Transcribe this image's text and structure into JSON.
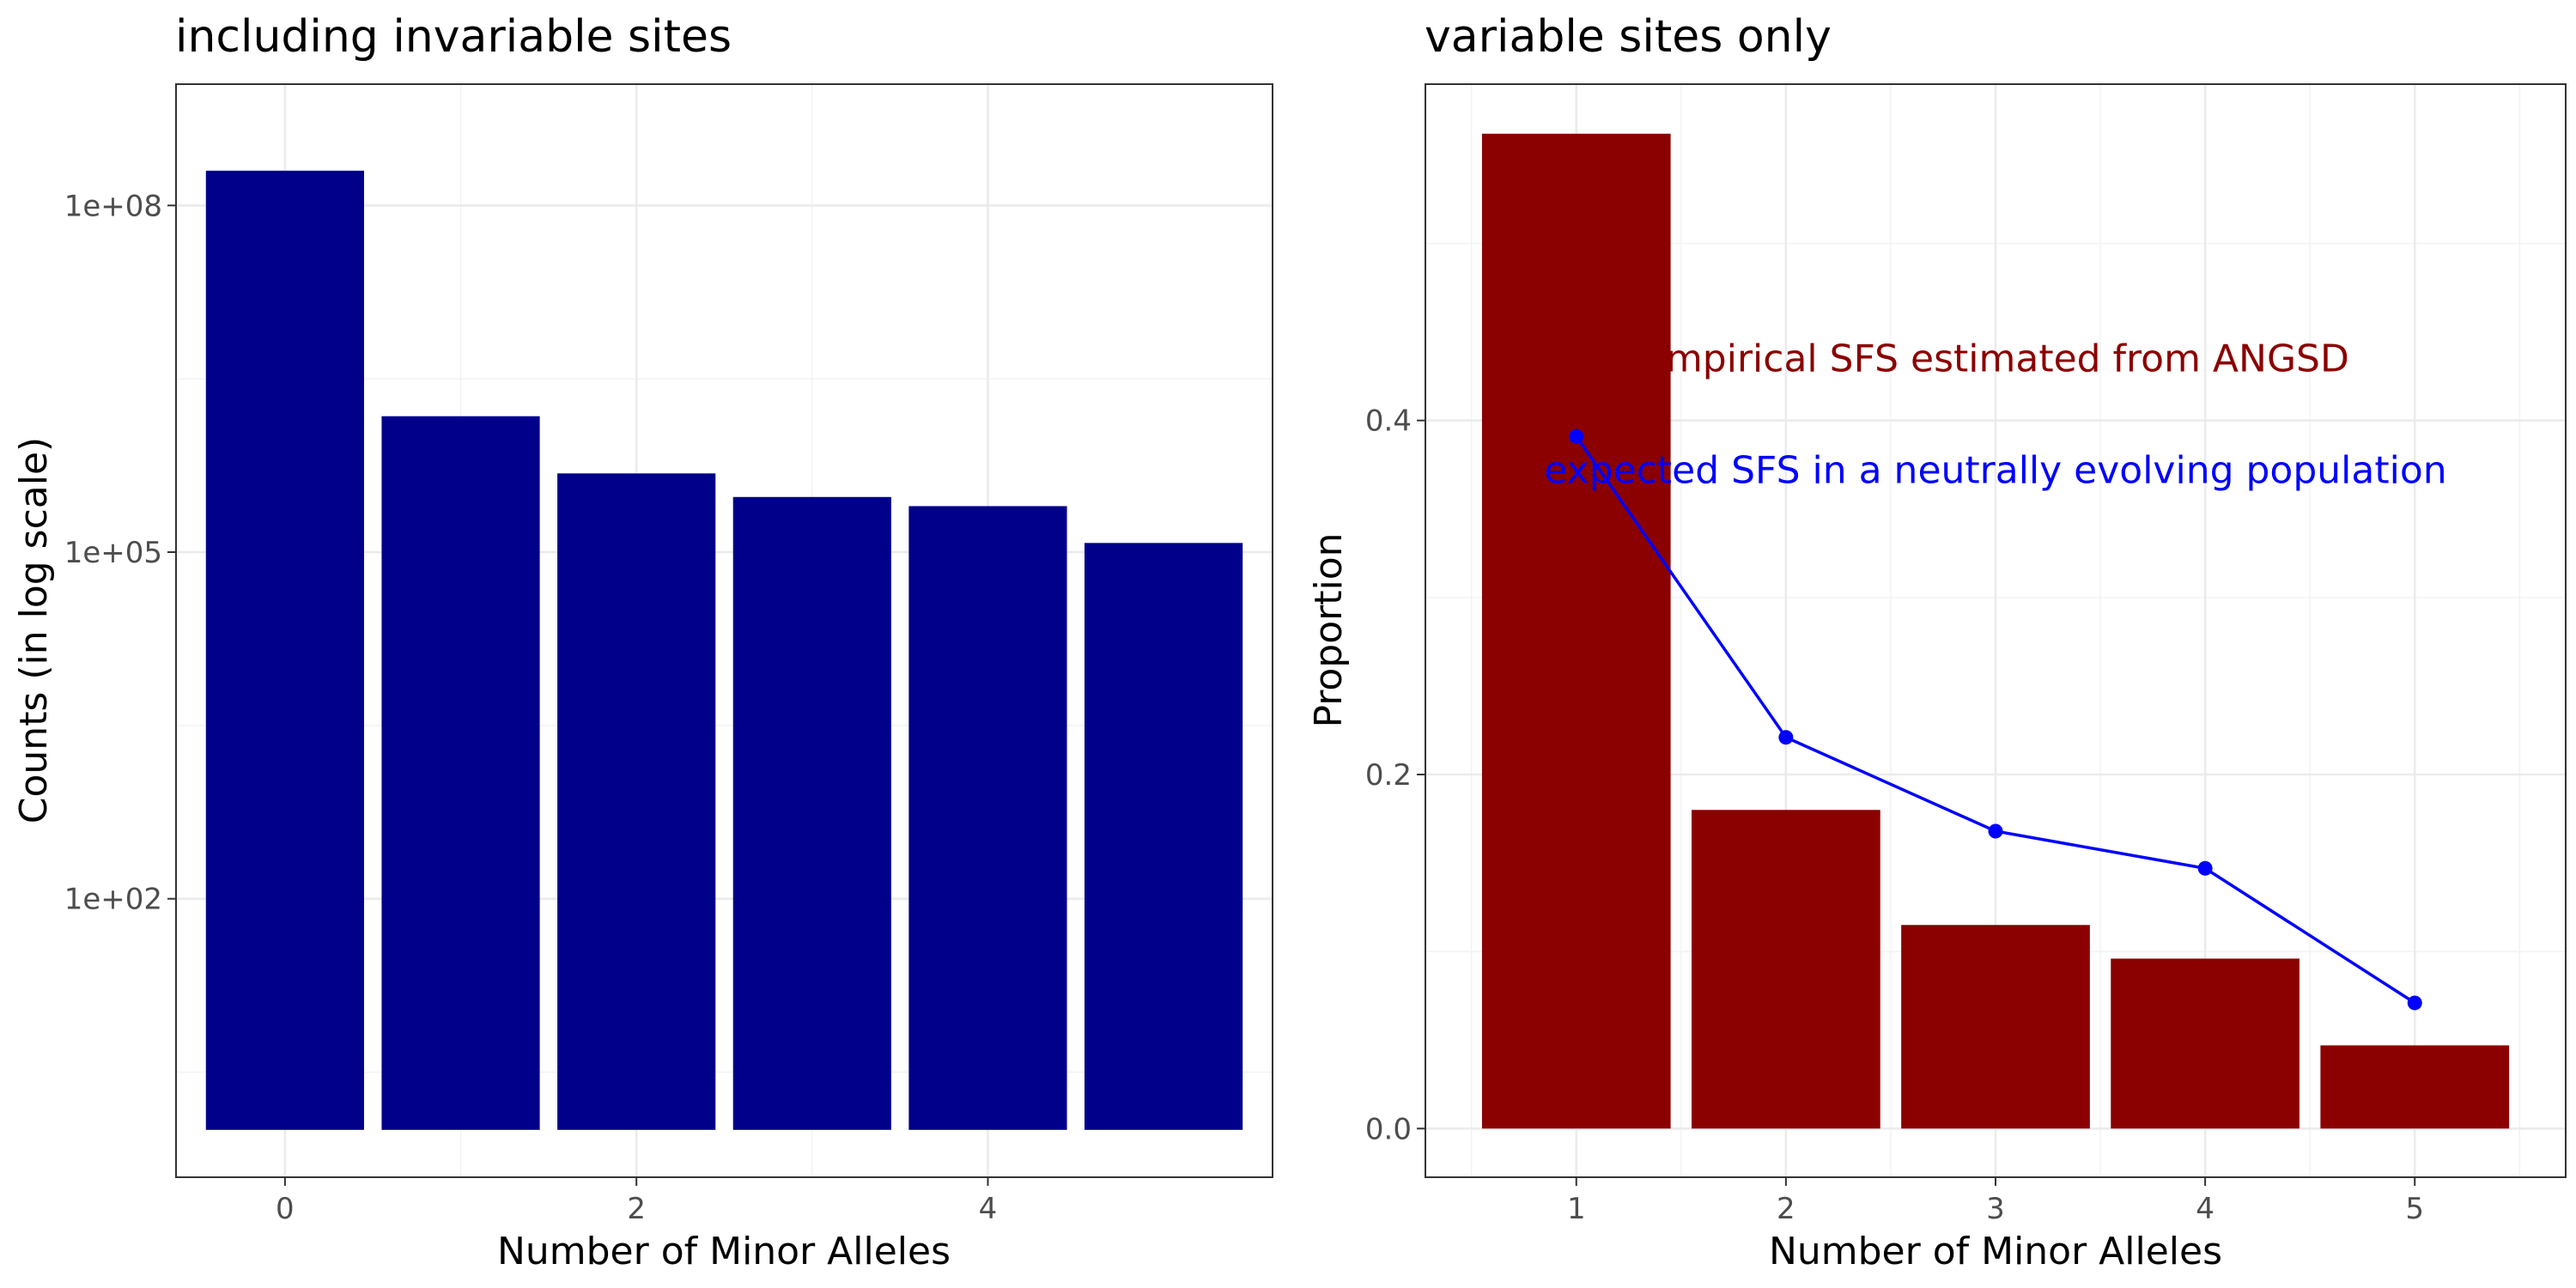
{
  "chart_data": [
    {
      "type": "bar",
      "title": "including invariable sites",
      "xlabel": "Number of Minor Alleles",
      "ylabel": "Counts (in log scale)",
      "y_scale": "log10",
      "x": [
        0,
        1,
        2,
        3,
        4,
        5
      ],
      "values": [
        200000000,
        1500000,
        480000,
        300000,
        250000,
        120000
      ],
      "bar_baseline": 1,
      "x_ticks": [
        0,
        2,
        4
      ],
      "x_tick_labels": [
        "0",
        "2",
        "4"
      ],
      "xlim": [
        -0.62,
        5.62
      ],
      "y_ticks": [
        100000000,
        100000,
        100
      ],
      "y_tick_labels": [
        "1e+08",
        "1e+05",
        "1e+02"
      ],
      "ylim_log10": [
        -0.41,
        9.05
      ],
      "bar_color": "#00008B",
      "grid": true
    },
    {
      "type": "bar",
      "title": "variable sites only",
      "xlabel": "Number of Minor Alleles",
      "ylabel": "Proportion",
      "x": [
        1,
        2,
        3,
        4,
        5
      ],
      "values": [
        0.562,
        0.18,
        0.115,
        0.096,
        0.047
      ],
      "x_ticks": [
        1,
        2,
        3,
        4,
        5
      ],
      "x_tick_labels": [
        "1",
        "2",
        "3",
        "4",
        "5"
      ],
      "xlim": [
        0.28,
        5.72
      ],
      "y_ticks": [
        0.0,
        0.2,
        0.4
      ],
      "y_tick_labels": [
        "0.0",
        "0.2",
        "0.4"
      ],
      "ylim": [
        -0.0275,
        0.59
      ],
      "bar_color": "#8B0000",
      "grid": true,
      "line_series": {
        "x": [
          1,
          2,
          3,
          4,
          5
        ],
        "values": [
          0.391,
          0.221,
          0.168,
          0.147,
          0.071
        ],
        "color": "#0000FF"
      },
      "annotations": [
        {
          "text": "Empirical SFS estimated from ANGSD",
          "x": 3,
          "y": 0.435,
          "color": "#8B0000"
        },
        {
          "text": "expected SFS in a neutrally evolving population",
          "x": 3,
          "y": 0.372,
          "color": "#0000FF"
        }
      ]
    }
  ]
}
